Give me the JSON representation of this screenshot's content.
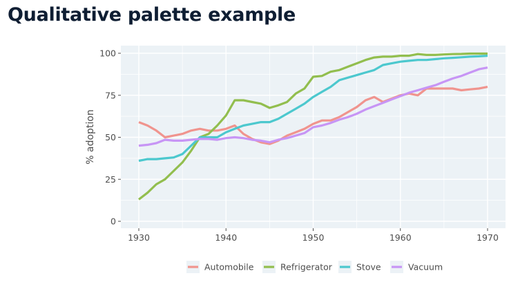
{
  "page": {
    "title": "Qualitative palette example"
  },
  "chart_data": {
    "type": "line",
    "title": "Qualitative palette example",
    "xlabel": "",
    "ylabel": "% adoption",
    "xlim": [
      1930,
      1970
    ],
    "ylim": [
      0,
      100
    ],
    "x_ticks": [
      1930,
      1940,
      1950,
      1960,
      1970
    ],
    "y_ticks": [
      0,
      25,
      50,
      75,
      100
    ],
    "grid": true,
    "legend_position": "bottom",
    "x": [
      1930,
      1931,
      1932,
      1933,
      1934,
      1935,
      1936,
      1937,
      1938,
      1939,
      1940,
      1941,
      1942,
      1943,
      1944,
      1945,
      1946,
      1947,
      1948,
      1949,
      1950,
      1951,
      1952,
      1953,
      1954,
      1955,
      1956,
      1957,
      1958,
      1959,
      1960,
      1961,
      1962,
      1963,
      1964,
      1965,
      1966,
      1967,
      1968,
      1969,
      1970
    ],
    "series": [
      {
        "name": "Automobile",
        "color": "#F0948E",
        "values": [
          59,
          57,
          54,
          50,
          51,
          52,
          54,
          55,
          54,
          54,
          55,
          57,
          52,
          49,
          47,
          46,
          48,
          51,
          53,
          55,
          58,
          60,
          60,
          62,
          65,
          68,
          72,
          74,
          71,
          73,
          75,
          76,
          75,
          79,
          79,
          79,
          79,
          78,
          78.5,
          79,
          80
        ]
      },
      {
        "name": "Refrigerator",
        "color": "#92BE4E",
        "values": [
          13,
          17,
          22,
          25,
          30,
          35,
          42,
          50,
          52,
          57,
          63,
          72,
          72,
          71,
          70,
          67.5,
          69,
          71,
          76,
          79,
          86,
          86.5,
          89,
          90,
          92,
          94,
          96,
          97.5,
          98,
          98,
          98.5,
          98.5,
          99.5,
          99,
          99,
          99.3,
          99.5,
          99.6,
          99.8,
          99.8,
          99.8
        ]
      },
      {
        "name": "Stove",
        "color": "#4CC8CE",
        "values": [
          36,
          37,
          37,
          37.5,
          38,
          40,
          45,
          50,
          50,
          50,
          53,
          55,
          57,
          58,
          59,
          59,
          61,
          64,
          67,
          70,
          74,
          77,
          80,
          84,
          85.5,
          87,
          88.5,
          90,
          93,
          94,
          95,
          95.5,
          96,
          96,
          96.5,
          97,
          97.3,
          97.6,
          98,
          98.2,
          98.5
        ]
      },
      {
        "name": "Vacuum",
        "color": "#C795F5",
        "values": [
          45,
          45.5,
          46.5,
          48.5,
          48,
          48,
          48.5,
          49,
          49,
          48.5,
          49.5,
          50,
          49.5,
          48.5,
          48,
          47,
          48.5,
          49.5,
          51,
          52.5,
          56,
          57,
          58.5,
          60.5,
          62,
          64,
          66.5,
          68.5,
          70.5,
          72.5,
          74.5,
          76.5,
          78,
          79.5,
          81,
          83,
          85,
          86.5,
          88.5,
          90.5,
          91.5
        ]
      }
    ]
  }
}
